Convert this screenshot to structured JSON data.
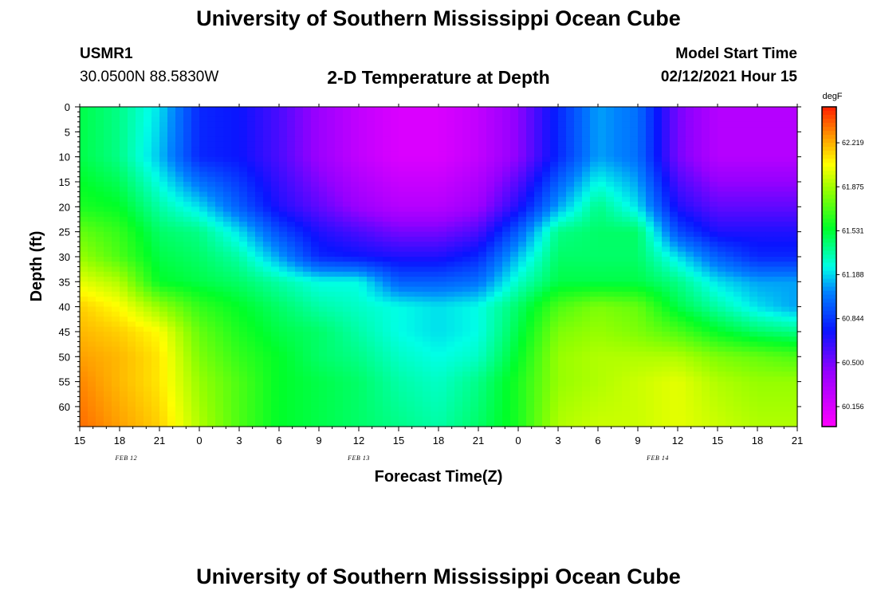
{
  "header": {
    "title_top": "University of Southern Mississippi Ocean Cube",
    "station": "USMR1",
    "coords": "30.0500N 88.5830W",
    "plot_title": "2-D Temperature at Depth",
    "model_label": "Model Start Time",
    "model_time": "02/12/2021 Hour 15",
    "title_bottom": "University of Southern Mississippi Ocean Cube"
  },
  "chart_data": {
    "type": "heatmap",
    "title": "2-D Temperature at Depth",
    "xlabel": "Forecast Time(Z)",
    "ylabel": "Depth (ft)",
    "x_hours_range": [
      0,
      54
    ],
    "x_ticks": [
      {
        "hour": 0,
        "label": "15"
      },
      {
        "hour": 3,
        "label": "18"
      },
      {
        "hour": 6,
        "label": "21"
      },
      {
        "hour": 9,
        "label": "0"
      },
      {
        "hour": 12,
        "label": "3"
      },
      {
        "hour": 15,
        "label": "6"
      },
      {
        "hour": 18,
        "label": "9"
      },
      {
        "hour": 21,
        "label": "12"
      },
      {
        "hour": 24,
        "label": "15"
      },
      {
        "hour": 27,
        "label": "18"
      },
      {
        "hour": 30,
        "label": "21"
      },
      {
        "hour": 33,
        "label": "0"
      },
      {
        "hour": 36,
        "label": "3"
      },
      {
        "hour": 39,
        "label": "6"
      },
      {
        "hour": 42,
        "label": "9"
      },
      {
        "hour": 45,
        "label": "12"
      },
      {
        "hour": 48,
        "label": "15"
      },
      {
        "hour": 51,
        "label": "18"
      },
      {
        "hour": 54,
        "label": "21"
      }
    ],
    "date_labels": [
      {
        "hour": 3.5,
        "label": "FEB 12"
      },
      {
        "hour": 21,
        "label": "FEB 13"
      },
      {
        "hour": 43.5,
        "label": "FEB 14"
      }
    ],
    "y_ticks": [
      0,
      5,
      10,
      15,
      20,
      25,
      30,
      35,
      40,
      45,
      50,
      55,
      60
    ],
    "ylim": [
      0,
      64
    ],
    "colorbar": {
      "unit": "degF",
      "min": 60.0,
      "max": 62.5,
      "ticks": [
        "62.219",
        "61.875",
        "61.531",
        "61.188",
        "60.844",
        "60.500",
        "60.156"
      ]
    },
    "z_grid_degF": {
      "hours": [
        0,
        3,
        6,
        9,
        12,
        15,
        18,
        21,
        24,
        27,
        30,
        33,
        36,
        39,
        42,
        45,
        48,
        51,
        54
      ],
      "depths": [
        0,
        10,
        20,
        25,
        30,
        35,
        40,
        45,
        50,
        55,
        64
      ],
      "values": [
        [
          61.5,
          61.4,
          61.2,
          60.8,
          60.75,
          60.6,
          60.4,
          60.25,
          60.15,
          60.15,
          60.25,
          60.45,
          60.8,
          61.1,
          61.0,
          60.5,
          60.3,
          60.3,
          60.3
        ],
        [
          61.5,
          61.4,
          61.15,
          60.8,
          60.75,
          60.6,
          60.4,
          60.25,
          60.15,
          60.15,
          60.25,
          60.45,
          60.8,
          61.1,
          61.0,
          60.5,
          60.3,
          60.3,
          60.3
        ],
        [
          61.6,
          61.55,
          61.35,
          61.2,
          60.95,
          60.7,
          60.55,
          60.4,
          60.3,
          60.3,
          60.4,
          60.7,
          61.1,
          61.4,
          61.2,
          60.7,
          60.55,
          60.55,
          60.55
        ],
        [
          61.75,
          61.65,
          61.45,
          61.4,
          61.2,
          60.9,
          60.7,
          60.6,
          60.5,
          60.5,
          60.6,
          60.95,
          61.4,
          61.45,
          61.45,
          60.9,
          60.7,
          60.7,
          60.7
        ],
        [
          61.85,
          61.7,
          61.5,
          61.45,
          61.35,
          61.1,
          60.8,
          60.75,
          60.7,
          60.7,
          60.8,
          61.15,
          61.45,
          61.45,
          61.45,
          61.2,
          60.95,
          60.8,
          60.8
        ],
        [
          62.0,
          61.9,
          61.55,
          61.5,
          61.45,
          61.35,
          61.25,
          61.25,
          60.95,
          60.95,
          61.0,
          61.3,
          61.5,
          61.5,
          61.5,
          61.4,
          61.2,
          61.1,
          61.1
        ],
        [
          62.15,
          62.05,
          61.85,
          61.65,
          61.55,
          61.45,
          61.35,
          61.3,
          61.25,
          61.2,
          61.25,
          61.45,
          61.7,
          61.8,
          61.75,
          61.5,
          61.35,
          61.2,
          61.1
        ],
        [
          62.2,
          62.15,
          62.05,
          61.75,
          61.6,
          61.5,
          61.45,
          61.35,
          61.25,
          61.2,
          61.25,
          61.5,
          61.8,
          61.85,
          61.8,
          61.7,
          61.55,
          61.45,
          61.4
        ],
        [
          62.25,
          62.2,
          62.1,
          61.8,
          61.65,
          61.55,
          61.45,
          61.4,
          61.3,
          61.25,
          61.3,
          61.55,
          61.85,
          61.9,
          61.9,
          61.9,
          61.8,
          61.75,
          61.7
        ],
        [
          62.3,
          62.2,
          62.1,
          61.85,
          61.7,
          61.55,
          61.5,
          61.45,
          61.35,
          61.3,
          61.4,
          61.6,
          61.85,
          61.9,
          61.95,
          62.0,
          61.9,
          61.85,
          61.85
        ],
        [
          62.35,
          62.25,
          62.15,
          61.9,
          61.7,
          61.55,
          61.5,
          61.45,
          61.4,
          61.35,
          61.45,
          61.6,
          61.9,
          61.95,
          61.95,
          62.0,
          61.95,
          61.9,
          61.9
        ]
      ]
    }
  }
}
